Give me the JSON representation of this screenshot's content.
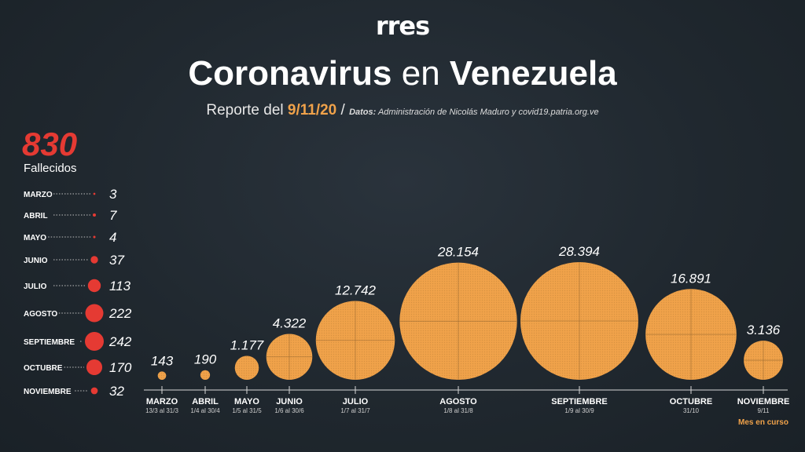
{
  "brand": {
    "logo_text": "rres"
  },
  "header": {
    "title_part1": "Coronavirus",
    "title_part2": " en ",
    "title_part3": "Venezuela",
    "report_prefix": "Reporte del ",
    "report_date": "9/11/20",
    "separator": " / ",
    "source_label": "Datos:",
    "source_text": " Administración de Nicolás Maduro y covid19.patria.org.ve"
  },
  "deaths": {
    "total": "830",
    "total_label": "Fallecidos"
  },
  "colors": {
    "bubble": "#f0a24a",
    "deaths_accent": "#e53a33",
    "background": "#232b33"
  },
  "chart_data": [
    {
      "type": "bubble",
      "series_label": "",
      "categories": [
        "MARZO",
        "ABRIL",
        "MAYO",
        "JUNIO",
        "JULIO",
        "AGOSTO",
        "SEPTIEMBRE",
        "OCTUBRE",
        "NOVIEMBRE"
      ],
      "ranges": [
        "13/3 al 31/3",
        "1/4 al 30/4",
        "1/5 al 31/5",
        "1/6 al 30/6",
        "1/7 al 31/7",
        "1/8 al 31/8",
        "1/9 al 30/9",
        "31/10",
        "9/11"
      ],
      "values": [
        143,
        190,
        1177,
        4322,
        12742,
        28154,
        28394,
        16891,
        3136
      ],
      "value_labels": [
        "143",
        "190",
        "1.177",
        "4.322",
        "12.742",
        "28.154",
        "28.394",
        "16.891",
        "3.136"
      ],
      "note": "Mes en curso"
    },
    {
      "type": "bubble-list",
      "series_label": "Fallecidos",
      "categories": [
        "MARZO",
        "ABRIL",
        "MAYO",
        "JUNIO",
        "JULIO",
        "AGOSTO",
        "SEPTIEMBRE",
        "OCTUBRE",
        "NOVIEMBRE"
      ],
      "values": [
        3,
        7,
        4,
        37,
        113,
        222,
        242,
        170,
        32
      ]
    }
  ]
}
